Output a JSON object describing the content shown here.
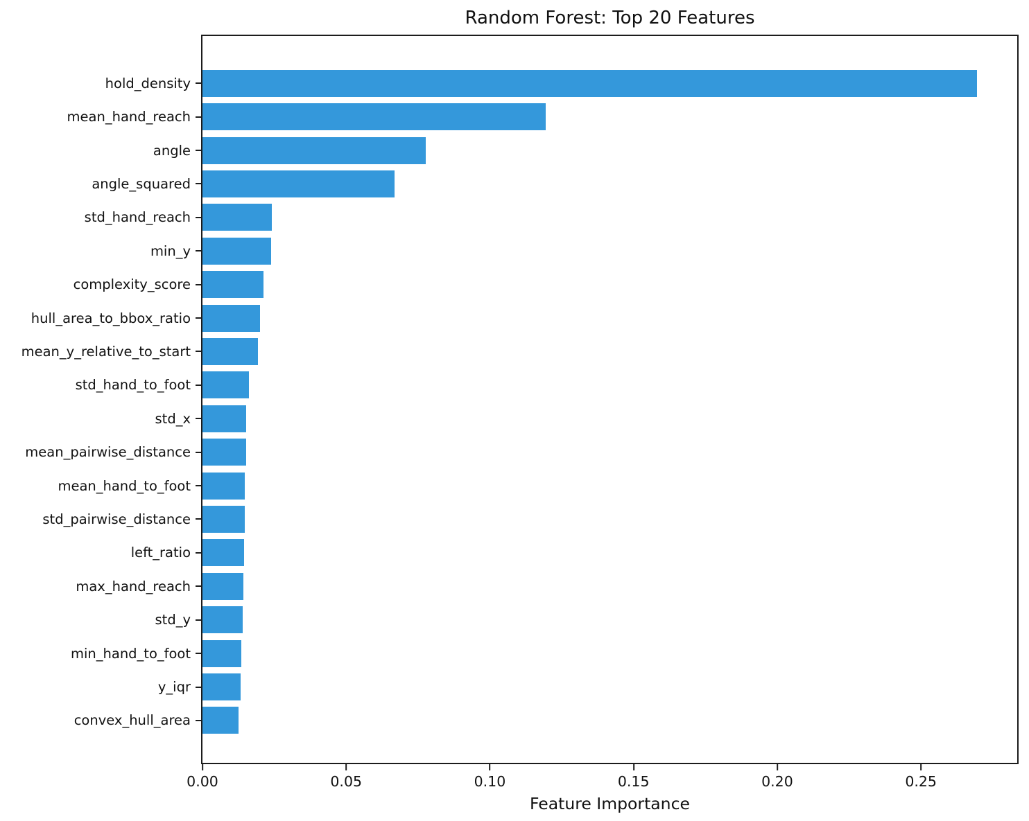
{
  "chart_data": {
    "type": "bar",
    "orientation": "horizontal",
    "title": "Random Forest: Top 20 Features",
    "xlabel": "Feature Importance",
    "ylabel": "",
    "categories": [
      "hold_density",
      "mean_hand_reach",
      "angle",
      "angle_squared",
      "std_hand_reach",
      "min_y",
      "complexity_score",
      "hull_area_to_bbox_ratio",
      "mean_y_relative_to_start",
      "std_hand_to_foot",
      "std_x",
      "mean_pairwise_distance",
      "mean_hand_to_foot",
      "std_pairwise_distance",
      "left_ratio",
      "max_hand_reach",
      "std_y",
      "min_hand_to_foot",
      "y_iqr",
      "convex_hull_area"
    ],
    "values": [
      0.2695,
      0.1195,
      0.0778,
      0.0669,
      0.0242,
      0.0239,
      0.0212,
      0.0201,
      0.0192,
      0.0162,
      0.0153,
      0.0151,
      0.0147,
      0.0146,
      0.0144,
      0.0143,
      0.0141,
      0.0135,
      0.0133,
      0.0126
    ],
    "xlim": [
      0,
      0.2835
    ],
    "xticks": [
      0.0,
      0.05,
      0.1,
      0.15,
      0.2,
      0.25
    ],
    "xtick_labels": [
      "0.00",
      "0.05",
      "0.10",
      "0.15",
      "0.20",
      "0.25"
    ],
    "bar_color": "#3498db",
    "grid": false,
    "legend_position": "none"
  }
}
